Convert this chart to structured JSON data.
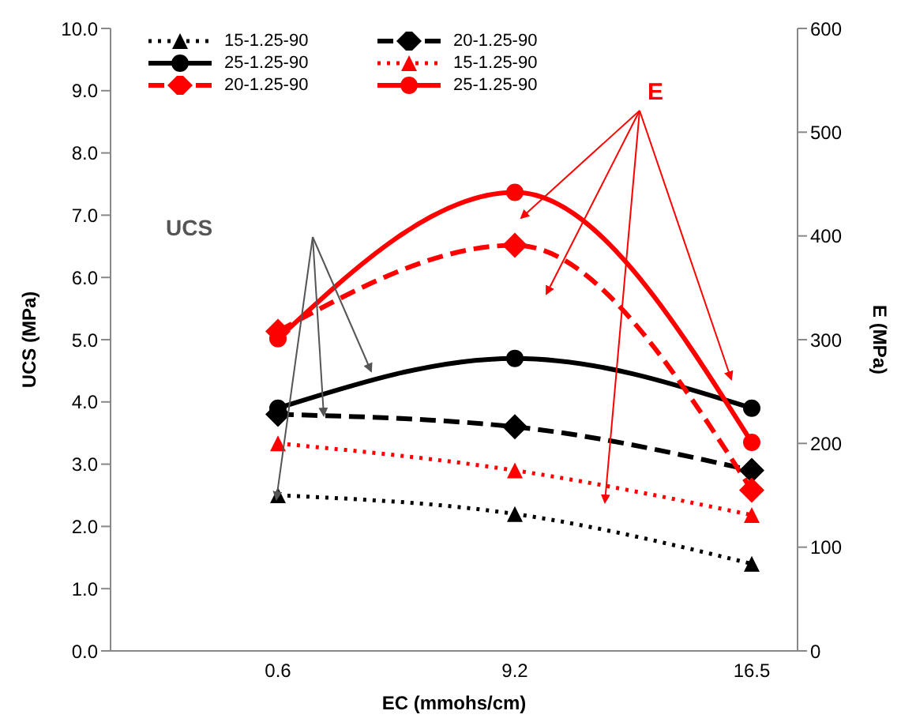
{
  "chart_data": {
    "type": "line",
    "xlabel": "EC (mmohs/cm)",
    "ylabel": "UCS (MPa)",
    "y2label": "E (MPa)",
    "categories": [
      "0.6",
      "9.2",
      "16.5"
    ],
    "ylim": [
      0,
      10
    ],
    "yticks": [
      {
        "value": 0,
        "label": "0.0"
      },
      {
        "value": 1,
        "label": "1.0"
      },
      {
        "value": 2,
        "label": "2.0"
      },
      {
        "value": 3,
        "label": "3.0"
      },
      {
        "value": 4,
        "label": "4.0"
      },
      {
        "value": 5,
        "label": "5.0"
      },
      {
        "value": 6,
        "label": "6.0"
      },
      {
        "value": 7,
        "label": "7.0"
      },
      {
        "value": 8,
        "label": "8.0"
      },
      {
        "value": 9,
        "label": "9.0"
      },
      {
        "value": 10,
        "label": "10.0"
      }
    ],
    "y2lim": [
      0,
      600
    ],
    "y2ticks": [
      0,
      100,
      200,
      300,
      400,
      500,
      600
    ],
    "legend": "top left",
    "grid": false,
    "annotations": [
      "UCS",
      "E"
    ],
    "series": [
      {
        "name": "15-1.25-90",
        "color": "#000000",
        "values": [
          2.5,
          2.2,
          1.4
        ],
        "marker": "triangle",
        "line_style": "dotted"
      },
      {
        "name": "20-1.25-90",
        "color": "#000000",
        "values": [
          3.8,
          3.6,
          2.9
        ],
        "marker": "diamond",
        "line_style": "dashed"
      },
      {
        "name": "25-1.25-90",
        "color": "#000000",
        "values": [
          3.9,
          4.7,
          3.9
        ],
        "marker": "circle",
        "line_style": "solid"
      },
      {
        "name": "15-1.25-90",
        "color": "#ff0000",
        "values": [
          200,
          174,
          131
        ],
        "marker": "triangle",
        "line_style": "dotted",
        "axis": "y2"
      },
      {
        "name": "20-1.25-90",
        "color": "#ff0000",
        "values": [
          308,
          391,
          155
        ],
        "marker": "diamond",
        "line_style": "dashed",
        "axis": "y2"
      },
      {
        "name": "25-1.25-90",
        "color": "#ff0000",
        "values": [
          301,
          442,
          201
        ],
        "marker": "circle",
        "line_style": "solid",
        "axis": "y2"
      }
    ]
  }
}
